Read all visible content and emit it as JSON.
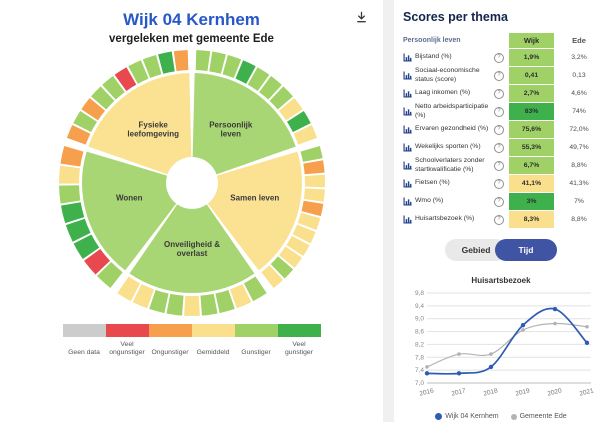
{
  "left_panel": {
    "title": "Wijk 04 Kernhem",
    "subtitle": "vergeleken met gemeente Ede"
  },
  "score_colors": {
    "geen_data": "#cccccc",
    "veel_ongunstiger": "#e8494e",
    "ongunstiger": "#f6a04d",
    "gemiddeld": "#fadf8d",
    "gunstiger": "#9fd166",
    "veel_gunstiger": "#3fb14c"
  },
  "sector_fill": {
    "gunstiger": "#a9d674",
    "gemiddeld": "#fae292"
  },
  "score_legend": {
    "items": [
      {
        "label": "Geen data",
        "score": "geen_data"
      },
      {
        "label": "Veel ongunstiger",
        "score": "veel_ongunstiger"
      },
      {
        "label": "Ongunstiger",
        "score": "ongunstiger"
      },
      {
        "label": "Gemiddeld",
        "score": "gemiddeld"
      },
      {
        "label": "Gunstiger",
        "score": "gunstiger"
      },
      {
        "label": "Veel gunstiger",
        "score": "veel_gunstiger"
      }
    ]
  },
  "right_panel": {
    "title": "Scores per thema",
    "table": {
      "theme_header": "Persoonlijk leven",
      "col_wijk": "Wijk",
      "col_ede": "Ede",
      "info_glyph": "?",
      "rows": [
        {
          "label": "Bijstand (%)",
          "wijk": "1,9%",
          "ede": "3,2%",
          "score": "gunstiger"
        },
        {
          "label": "Sociaal-economische status (score)",
          "wijk": "0,41",
          "ede": "0,13",
          "score": "gunstiger"
        },
        {
          "label": "Laag inkomen (%)",
          "wijk": "2,7%",
          "ede": "4,6%",
          "score": "gunstiger"
        },
        {
          "label": "Netto arbeidsparticipatie (%)",
          "wijk": "83%",
          "ede": "74%",
          "score": "veel_gunstiger"
        },
        {
          "label": "Ervaren gezondheid (%)",
          "wijk": "75,6%",
          "ede": "72,0%",
          "score": "gunstiger"
        },
        {
          "label": "Wekelijks sporten (%)",
          "wijk": "55,3%",
          "ede": "49,7%",
          "score": "gunstiger"
        },
        {
          "label": "Schoolverlaters zonder startkwalificatie (%)",
          "wijk": "6,7%",
          "ede": "8,8%",
          "score": "gunstiger"
        },
        {
          "label": "Fietsen (%)",
          "wijk": "41,1%",
          "ede": "41,3%",
          "score": "gemiddeld"
        },
        {
          "label": "Wmo (%)",
          "wijk": "3%",
          "ede": "7%",
          "score": "veel_gunstiger"
        },
        {
          "label": "Huisartsbezoek (%)",
          "wijk": "8,3%",
          "ede": "8,8%",
          "score": "gemiddeld"
        }
      ]
    },
    "toggle": {
      "gebied": "Gebied",
      "tijd": "Tijd",
      "selected": "Tijd"
    }
  },
  "chart_data": [
    {
      "type": "sunburst",
      "title": "Wijk 04 Kernhem vergeleken met gemeente Ede",
      "sectors": [
        {
          "label": "Persoonlijk leven",
          "label_lines": [
            "Persoonlijk",
            "leven"
          ],
          "score": "gunstiger",
          "ring": [
            "gunstiger",
            "gunstiger",
            "gunstiger",
            "veel_gunstiger",
            "gunstiger",
            "gunstiger",
            "gunstiger",
            "gemiddeld",
            "veel_gunstiger",
            "gemiddeld"
          ]
        },
        {
          "label": "Samen leven",
          "label_lines": [
            "Samen leven"
          ],
          "score": "gemiddeld",
          "ring": [
            "gunstiger",
            "ongunstiger",
            "gemiddeld",
            "gemiddeld",
            "ongunstiger",
            "gemiddeld",
            "gemiddeld",
            "gemiddeld",
            "gemiddeld",
            "gunstiger",
            "gemiddeld"
          ]
        },
        {
          "label": "Onveiligheid & overlast",
          "label_lines": [
            "Onveiligheid &",
            "overlast"
          ],
          "score": "gunstiger",
          "ring": [
            "gunstiger",
            "gemiddeld",
            "gunstiger",
            "gunstiger",
            "gemiddeld",
            "gunstiger",
            "gunstiger",
            "gemiddeld",
            "gemiddeld"
          ]
        },
        {
          "label": "Wonen",
          "label_lines": [
            "Wonen"
          ],
          "score": "gunstiger",
          "ring": [
            "gunstiger",
            "veel_ongunstiger",
            "veel_gunstiger",
            "veel_gunstiger",
            "veel_gunstiger",
            "gunstiger",
            "gemiddeld",
            "ongunstiger"
          ]
        },
        {
          "label": "Fysieke leefomgeving",
          "label_lines": [
            "Fysieke",
            "leefomgeving"
          ],
          "score": "gemiddeld",
          "ring": [
            "ongunstiger",
            "gunstiger",
            "ongunstiger",
            "gunstiger",
            "gunstiger",
            "veel_ongunstiger",
            "gunstiger",
            "gunstiger",
            "veel_gunstiger",
            "ongunstiger"
          ]
        }
      ]
    },
    {
      "type": "line",
      "title": "Huisartsbezoek",
      "x": [
        "2016",
        "2017",
        "2018",
        "2019",
        "2020",
        "2021"
      ],
      "series": [
        {
          "name": "Wijk 04 Kernhem",
          "color": "#2f5bb5",
          "values": [
            7.3,
            7.3,
            7.5,
            8.8,
            9.3,
            8.25
          ]
        },
        {
          "name": "Gemeente Ede",
          "color": "#b3b3b3",
          "values": [
            7.5,
            7.9,
            7.9,
            8.65,
            8.85,
            8.75
          ]
        }
      ],
      "ylim": [
        7.0,
        9.8
      ],
      "yticks": [
        7.0,
        7.4,
        7.8,
        8.2,
        8.6,
        9.0,
        9.4,
        9.8
      ],
      "grid": true,
      "legend_position": "bottom"
    }
  ]
}
